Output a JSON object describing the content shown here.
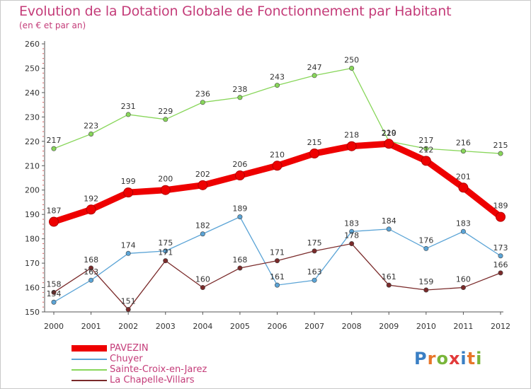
{
  "header": {
    "title": "Evolution de la Dotation Globale de Fonctionnement par Habitant",
    "subtitle": "(en € et par an)"
  },
  "logo": {
    "text": "Proxiti",
    "colors": [
      "#3a7fc4",
      "#e8762a",
      "#79b53a",
      "#e23a3a",
      "#3a7fc4",
      "#e8762a",
      "#79b53a"
    ]
  },
  "chart_data": {
    "type": "line",
    "title": "Evolution de la Dotation Globale de Fonctionnement par Habitant",
    "subtitle": "(en € et par an)",
    "xlabel": "",
    "ylabel": "",
    "x": [
      "2000",
      "2001",
      "2002",
      "2003",
      "2004",
      "2005",
      "2006",
      "2007",
      "2008",
      "2009",
      "2010",
      "2011",
      "2012"
    ],
    "ylim": [
      150,
      260
    ],
    "yticks": [
      150,
      160,
      170,
      180,
      190,
      200,
      210,
      220,
      230,
      240,
      250,
      260
    ],
    "grid": false,
    "legend_position": "bottom-left",
    "series": [
      {
        "name": "PAVEZIN",
        "color": "#ee0000",
        "highlight": true,
        "values": [
          187,
          192,
          199,
          200,
          202,
          206,
          210,
          215,
          218,
          219,
          212,
          201,
          189
        ]
      },
      {
        "name": "Chuyer",
        "color": "#5ba4d6",
        "values": [
          154,
          163,
          174,
          175,
          182,
          189,
          161,
          163,
          183,
          184,
          176,
          183,
          173
        ]
      },
      {
        "name": "Sainte-Croix-en-Jarez",
        "color": "#88d65a",
        "values": [
          217,
          223,
          231,
          229,
          236,
          238,
          243,
          247,
          250,
          220,
          217,
          216,
          215
        ]
      },
      {
        "name": "La Chapelle-Villars",
        "color": "#7a2a2a",
        "values": [
          158,
          168,
          151,
          171,
          160,
          168,
          171,
          175,
          178,
          161,
          159,
          160,
          166
        ]
      }
    ]
  }
}
